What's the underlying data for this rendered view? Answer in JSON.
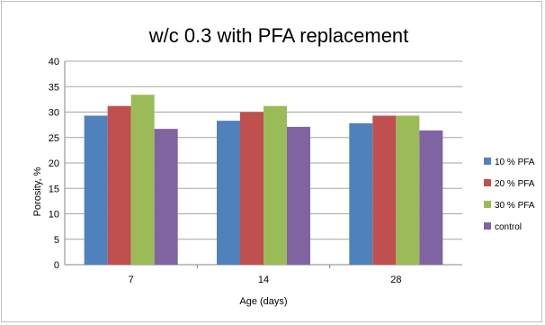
{
  "chart_data": {
    "type": "bar",
    "title": "w/c 0.3 with PFA replacement",
    "xlabel": "Age (days)",
    "ylabel": "Porosity, %",
    "categories": [
      "7",
      "14",
      "28"
    ],
    "ylim": [
      0,
      40
    ],
    "yticks": [
      0,
      5,
      10,
      15,
      20,
      25,
      30,
      35,
      40
    ],
    "grid": true,
    "legend_position": "right",
    "series": [
      {
        "name": "10 % PFA",
        "color": "#4f81bd",
        "values": [
          29.3,
          28.3,
          27.8
        ]
      },
      {
        "name": "20 % PFA",
        "color": "#c0504d",
        "values": [
          31.2,
          30.0,
          29.3
        ]
      },
      {
        "name": "30 % PFA",
        "color": "#9bbb59",
        "values": [
          33.4,
          31.2,
          29.3
        ]
      },
      {
        "name": "control",
        "color": "#8064a2",
        "values": [
          26.7,
          27.1,
          26.4
        ]
      }
    ]
  }
}
